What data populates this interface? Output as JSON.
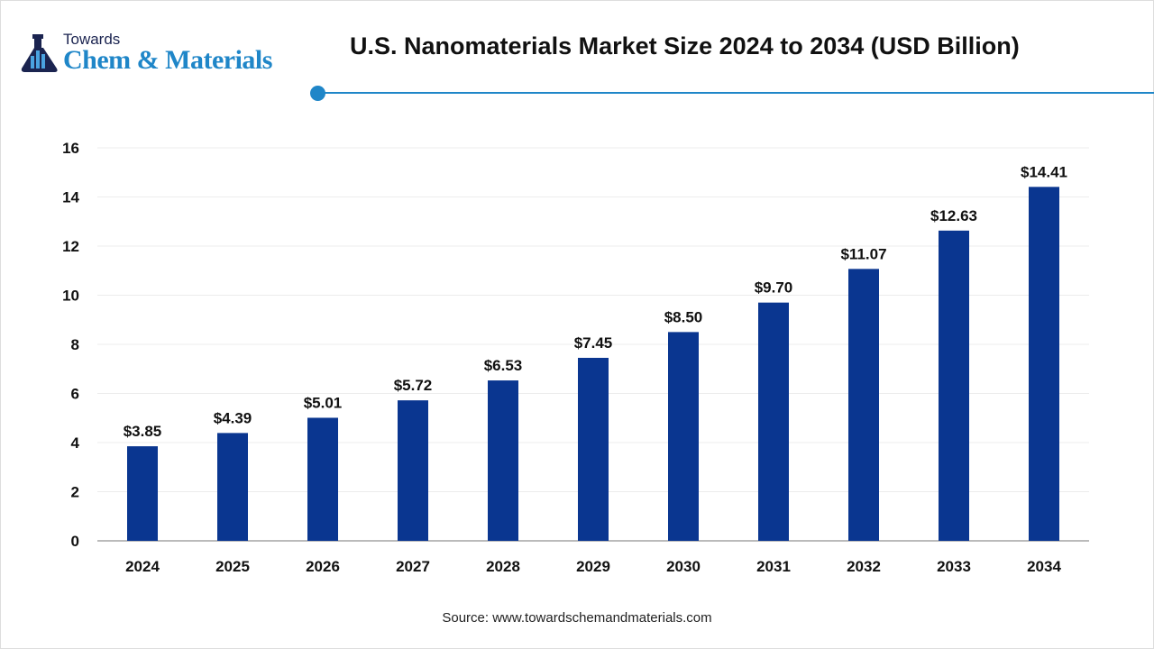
{
  "logo": {
    "line1": "Towards",
    "line2": "Chem & Materials"
  },
  "colors": {
    "bar": "#0a3690",
    "accent": "#1f86c8",
    "grid": "#ececec"
  },
  "source": "Source: www.towardschemandmaterials.com",
  "chart_data": {
    "type": "bar",
    "title": "U.S. Nanomaterials Market Size 2024 to 2034 (USD Billion)",
    "categories": [
      "2024",
      "2025",
      "2026",
      "2027",
      "2028",
      "2029",
      "2030",
      "2031",
      "2032",
      "2033",
      "2034"
    ],
    "values": [
      3.85,
      4.39,
      5.01,
      5.72,
      6.53,
      7.45,
      8.5,
      9.7,
      11.07,
      12.63,
      14.41
    ],
    "data_labels": [
      "$3.85",
      "$4.39",
      "$5.01",
      "$5.72",
      "$6.53",
      "$7.45",
      "$8.50",
      "$9.70",
      "$11.07",
      "$12.63",
      "$14.41"
    ],
    "yticks": [
      "0",
      "2",
      "4",
      "6",
      "8",
      "10",
      "12",
      "14",
      "16"
    ],
    "ylim": [
      0,
      16
    ],
    "grid": true,
    "xlabel": "",
    "ylabel": ""
  }
}
